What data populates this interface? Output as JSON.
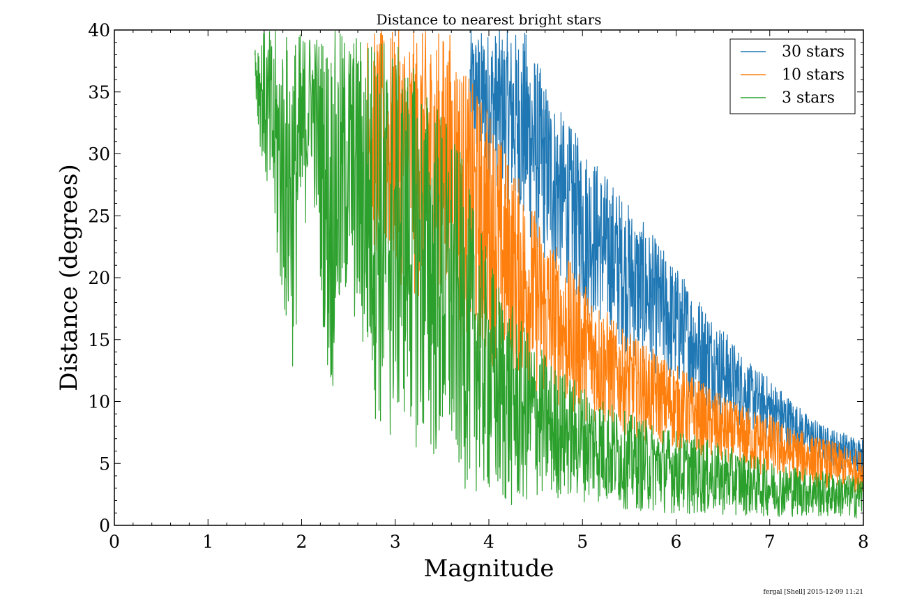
{
  "chart_data": {
    "type": "line",
    "title": "Distance to nearest bright stars",
    "xlabel": "Magnitude",
    "ylabel": "Distance (degrees)",
    "xlim": [
      0,
      8
    ],
    "ylim": [
      0,
      40
    ],
    "xticks": [
      "0",
      "1",
      "2",
      "3",
      "4",
      "5",
      "6",
      "7",
      "8"
    ],
    "yticks": [
      "0",
      "5",
      "10",
      "15",
      "20",
      "25",
      "30",
      "35",
      "40"
    ],
    "grid": false,
    "legend_position": "top-right",
    "series": [
      {
        "name": "30 stars",
        "color": "#1f77b4",
        "x": [
          3.8,
          4.0,
          4.2,
          4.4,
          4.6,
          4.8,
          5.0,
          5.2,
          5.4,
          5.6,
          5.8,
          6.0,
          6.2,
          6.4,
          6.6,
          6.8,
          7.0,
          7.2,
          7.4,
          7.6,
          7.8,
          8.0
        ],
        "y_low": [
          30,
          28,
          26,
          23,
          21,
          19,
          17,
          16,
          14,
          13,
          12,
          11,
          10,
          9,
          8,
          7.5,
          6.5,
          6,
          5.5,
          5,
          4.5,
          4.2
        ],
        "y_high": [
          40,
          40,
          40,
          40,
          36,
          33,
          31,
          29,
          27,
          25,
          23,
          21,
          19,
          17,
          15,
          13,
          12,
          10.5,
          9,
          8,
          7.5,
          7
        ]
      },
      {
        "name": "10 stars",
        "color": "#ff7f0e",
        "x": [
          2.7,
          3.0,
          3.2,
          3.4,
          3.6,
          3.8,
          4.0,
          4.2,
          4.4,
          4.6,
          4.8,
          5.0,
          5.2,
          5.4,
          5.6,
          5.8,
          6.0,
          6.2,
          6.4,
          6.6,
          6.8,
          7.0,
          7.2,
          7.4,
          7.6,
          7.8,
          8.0
        ],
        "y_low": [
          22,
          20,
          18,
          18,
          16,
          14,
          13,
          12,
          11,
          10,
          9,
          8.5,
          8,
          7.5,
          7,
          6.5,
          6,
          5.5,
          5,
          4.5,
          4,
          3.8,
          3.5,
          3.2,
          3,
          2.8,
          2.5
        ],
        "y_high": [
          40,
          40,
          40,
          40,
          40,
          36,
          34,
          30,
          27,
          24,
          22,
          20,
          18,
          16,
          15,
          14,
          13,
          12,
          11,
          10,
          9.5,
          9,
          8,
          7.5,
          7,
          6.5,
          6
        ]
      },
      {
        "name": "3 stars",
        "color": "#2ca02c",
        "x": [
          1.5,
          1.75,
          1.9,
          2.1,
          2.3,
          2.5,
          2.7,
          2.9,
          3.1,
          3.3,
          3.5,
          3.7,
          3.9,
          4.1,
          4.3,
          4.5,
          4.7,
          4.9,
          5.1,
          5.3,
          5.5,
          5.7,
          5.9,
          6.1,
          6.3,
          6.5,
          6.7,
          6.9,
          7.1,
          7.3,
          7.5,
          7.7,
          8.0
        ],
        "y_low": [
          34,
          19,
          12,
          29,
          9,
          18,
          11,
          5,
          8,
          5,
          4,
          3,
          2.5,
          1,
          1,
          2,
          2,
          2,
          1.8,
          1.5,
          1.2,
          1,
          1,
          0.8,
          0.8,
          0.8,
          0.8,
          0.7,
          0.7,
          0.7,
          0.6,
          0.6,
          0.5
        ],
        "y_high": [
          40,
          40,
          40,
          40,
          40,
          40,
          40,
          40,
          38,
          36,
          34,
          30,
          24,
          20,
          17,
          15,
          13,
          12,
          11,
          10,
          9,
          8.5,
          8,
          7.5,
          7,
          6.5,
          6,
          5.5,
          5,
          4.8,
          4.5,
          4.2,
          4
        ]
      }
    ]
  },
  "footer_text": "fergal [Shell] 2015-12-09 11:21"
}
